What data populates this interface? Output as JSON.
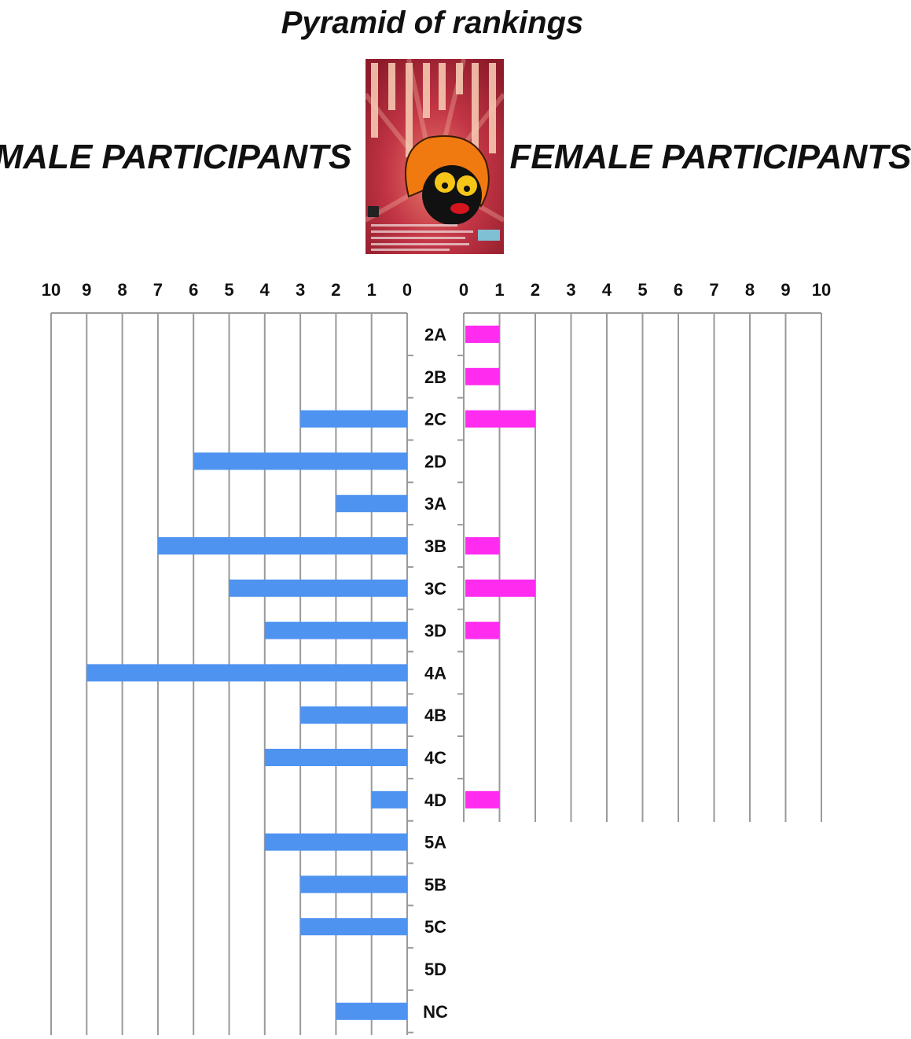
{
  "chart_data": {
    "type": "bar",
    "title": "Pyramid of rankings",
    "categories": [
      "2A",
      "2B",
      "2C",
      "2D",
      "3A",
      "3B",
      "3C",
      "3D",
      "4A",
      "4B",
      "4C",
      "4D",
      "5A",
      "5B",
      "5C",
      "5D",
      "NC"
    ],
    "series": [
      {
        "name": "MALE PARTICIPANTS",
        "color": "#4f93f0",
        "values": [
          0,
          0,
          3,
          6,
          2,
          7,
          5,
          4,
          9,
          3,
          4,
          1,
          4,
          3,
          3,
          0,
          2
        ]
      },
      {
        "name": "FEMALE PARTICIPANTS",
        "color": "#ff2cf0",
        "values": [
          1,
          1,
          2,
          0,
          0,
          1,
          2,
          1,
          0,
          0,
          0,
          1,
          null,
          null,
          null,
          null,
          null
        ]
      }
    ],
    "xlim": [
      0,
      10
    ],
    "ticks": [
      "0",
      "1",
      "2",
      "3",
      "4",
      "5",
      "6",
      "7",
      "8",
      "9",
      "10"
    ],
    "grid": true
  },
  "poster": {
    "icon": "tournament-poster-cartoon-face",
    "colors": {
      "background": "#b82a3c",
      "hair": "#f07a10"
    }
  }
}
